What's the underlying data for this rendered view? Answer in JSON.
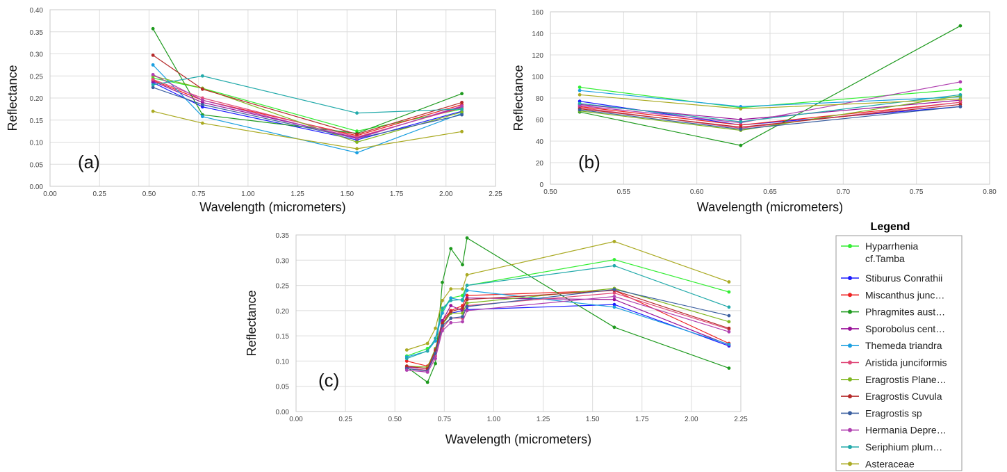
{
  "series_info": [
    {
      "name": "Hyparrhenia cf.Tamba",
      "color": "#33ee33"
    },
    {
      "name": "Stiburus Conrathii",
      "color": "#1a1aff"
    },
    {
      "name": "Miscanthus junc…",
      "color": "#ee2222"
    },
    {
      "name": "Phragmites aust…",
      "color": "#1e9a1e"
    },
    {
      "name": "Sporobolus cent…",
      "color": "#991199"
    },
    {
      "name": "Themeda triandra",
      "color": "#1a9fe0"
    },
    {
      "name": "Aristida junciformis",
      "color": "#e04a7a"
    },
    {
      "name": "Eragrostis Plane…",
      "color": "#7fb61f"
    },
    {
      "name": "Eragrostis Cuvula",
      "color": "#b52a2a"
    },
    {
      "name": "Eragrostis sp",
      "color": "#3a5fa0"
    },
    {
      "name": "Hermania Depre…",
      "color": "#b040b0"
    },
    {
      "name": "Seriphium plum…",
      "color": "#22aaaa"
    },
    {
      "name": "Asteraceae",
      "color": "#aaaa22"
    }
  ],
  "legend": {
    "title": "Legend",
    "items": [
      {
        "label": "Hyparrhenia",
        "label2": "cf.Tamba"
      },
      {
        "label": "Stiburus Conrathii"
      },
      {
        "label": "Miscanthus junc…"
      },
      {
        "label": "Phragmites aust…"
      },
      {
        "label": "Sporobolus cent…"
      },
      {
        "label": "Themeda triandra"
      },
      {
        "label": "Aristida junciformis"
      },
      {
        "label": "Eragrostis Plane…"
      },
      {
        "label": "Eragrostis Cuvula"
      },
      {
        "label": "Eragrostis sp"
      },
      {
        "label": "Hermania Depre…"
      },
      {
        "label": "Seriphium plum…"
      },
      {
        "label": "Asteraceae"
      }
    ]
  },
  "chart_data": [
    {
      "panel_label": "(a)",
      "type": "line",
      "xlabel": "Wavelength (micrometers)",
      "ylabel": "Reflectance",
      "xlim": [
        0,
        2.25
      ],
      "ylim": [
        0,
        0.4
      ],
      "xticks": [
        "0.00",
        "0.25",
        "0.50",
        "0.75",
        "1.00",
        "1.25",
        "1.50",
        "1.75",
        "2.00",
        "2.25"
      ],
      "yticks": [
        "0.00",
        "0.05",
        "0.10",
        "0.15",
        "0.20",
        "0.25",
        "0.30",
        "0.35",
        "0.40"
      ],
      "grid": true,
      "x": [
        0.52,
        0.77,
        1.55,
        2.08
      ],
      "series": [
        {
          "name": "Hyparrhenia cf.Tamba",
          "values": [
            0.245,
            0.222,
            0.125,
            0.175
          ]
        },
        {
          "name": "Stiburus Conrathii",
          "values": [
            0.235,
            0.18,
            0.105,
            0.17
          ]
        },
        {
          "name": "Miscanthus junc…",
          "values": [
            0.24,
            0.195,
            0.115,
            0.185
          ]
        },
        {
          "name": "Phragmites aust…",
          "values": [
            0.357,
            0.162,
            0.12,
            0.21
          ]
        },
        {
          "name": "Sporobolus cent…",
          "values": [
            0.238,
            0.19,
            0.11,
            0.18
          ]
        },
        {
          "name": "Themeda triandra",
          "values": [
            0.275,
            0.158,
            0.076,
            0.165
          ]
        },
        {
          "name": "Aristida junciformis",
          "values": [
            0.242,
            0.2,
            0.112,
            0.178
          ]
        },
        {
          "name": "Eragrostis Plane…",
          "values": [
            0.25,
            0.222,
            0.1,
            0.168
          ]
        },
        {
          "name": "Eragrostis Cuvula",
          "values": [
            0.297,
            0.22,
            0.118,
            0.19
          ]
        },
        {
          "name": "Eragrostis sp",
          "values": [
            0.224,
            0.185,
            0.108,
            0.162
          ]
        },
        {
          "name": "Hermania Depre…",
          "values": [
            0.253,
            0.195,
            0.108,
            0.182
          ]
        },
        {
          "name": "Seriphium plum…",
          "values": [
            0.23,
            0.25,
            0.166,
            0.175
          ]
        },
        {
          "name": "Asteraceae",
          "values": [
            0.17,
            0.143,
            0.085,
            0.124
          ]
        }
      ]
    },
    {
      "panel_label": "(b)",
      "type": "line",
      "xlabel": "Wavelength (micrometers)",
      "ylabel": "Reflectance",
      "xlim": [
        0.5,
        0.8
      ],
      "ylim": [
        0,
        160
      ],
      "xticks": [
        "0.50",
        "0.55",
        "0.60",
        "0.65",
        "0.70",
        "0.75",
        "0.80"
      ],
      "yticks": [
        "0",
        "20",
        "40",
        "60",
        "80",
        "100",
        "120",
        "140",
        "160"
      ],
      "grid": true,
      "x": [
        0.52,
        0.63,
        0.78
      ],
      "series": [
        {
          "name": "Hyparrhenia cf.Tamba",
          "values": [
            90,
            71,
            88
          ]
        },
        {
          "name": "Stiburus Conrathii",
          "values": [
            77,
            55,
            72
          ]
        },
        {
          "name": "Miscanthus junc…",
          "values": [
            72,
            55,
            76
          ]
        },
        {
          "name": "Phragmites aust…",
          "values": [
            67,
            36,
            147
          ]
        },
        {
          "name": "Sporobolus cent…",
          "values": [
            74,
            60,
            78
          ]
        },
        {
          "name": "Themeda triandra",
          "values": [
            87,
            72,
            81
          ]
        },
        {
          "name": "Aristida junciformis",
          "values": [
            71,
            52,
            76
          ]
        },
        {
          "name": "Eragrostis Plane…",
          "values": [
            68,
            50,
            82
          ]
        },
        {
          "name": "Eragrostis Cuvula",
          "values": [
            70,
            53,
            74
          ]
        },
        {
          "name": "Eragrostis sp",
          "values": [
            69,
            51,
            72
          ]
        },
        {
          "name": "Hermania Depre…",
          "values": [
            73,
            57,
            95
          ]
        },
        {
          "name": "Seriphium plum…",
          "values": [
            75,
            58,
            83
          ]
        },
        {
          "name": "Asteraceae",
          "values": [
            83,
            70,
            79
          ]
        }
      ]
    },
    {
      "panel_label": "(c)",
      "type": "line",
      "xlabel": "Wavelength (micrometers)",
      "ylabel": "Reflectance",
      "xlim": [
        0,
        2.25
      ],
      "ylim": [
        0,
        0.35
      ],
      "xticks": [
        "0.00",
        "0.25",
        "0.50",
        "0.75",
        "1.00",
        "1.25",
        "1.50",
        "1.75",
        "2.00",
        "2.25"
      ],
      "yticks": [
        "0.00",
        "0.05",
        "0.10",
        "0.15",
        "0.20",
        "0.25",
        "0.30",
        "0.35"
      ],
      "grid": true,
      "x": [
        0.56,
        0.665,
        0.705,
        0.74,
        0.783,
        0.842,
        0.865,
        1.61,
        2.19
      ],
      "series": [
        {
          "name": "Hyparrhenia cf.Tamba",
          "values": [
            0.11,
            0.125,
            0.14,
            0.2,
            0.225,
            0.23,
            0.25,
            0.301,
            0.237
          ]
        },
        {
          "name": "Stiburus Conrathii",
          "values": [
            0.085,
            0.082,
            0.115,
            0.175,
            0.195,
            0.2,
            0.202,
            0.212,
            0.13
          ]
        },
        {
          "name": "Miscanthus junc…",
          "values": [
            0.1,
            0.09,
            0.12,
            0.18,
            0.2,
            0.21,
            0.23,
            0.24,
            0.135
          ]
        },
        {
          "name": "Phragmites aust…",
          "values": [
            0.088,
            0.058,
            0.095,
            0.256,
            0.323,
            0.291,
            0.344,
            0.167,
            0.086
          ]
        },
        {
          "name": "Sporobolus cent…",
          "values": [
            0.088,
            0.085,
            0.12,
            0.18,
            0.21,
            0.2,
            0.225,
            0.222,
            0.132
          ]
        },
        {
          "name": "Themeda triandra",
          "values": [
            0.108,
            0.12,
            0.14,
            0.195,
            0.225,
            0.22,
            0.24,
            0.207,
            0.133
          ]
        },
        {
          "name": "Aristida junciformis",
          "values": [
            0.085,
            0.082,
            0.11,
            0.165,
            0.185,
            0.185,
            0.21,
            0.235,
            0.163
          ]
        },
        {
          "name": "Eragrostis Plane…",
          "values": [
            0.09,
            0.088,
            0.125,
            0.172,
            0.195,
            0.195,
            0.215,
            0.244,
            0.178
          ]
        },
        {
          "name": "Eragrostis Cuvula",
          "values": [
            0.09,
            0.085,
            0.122,
            0.175,
            0.198,
            0.205,
            0.222,
            0.24,
            0.165
          ]
        },
        {
          "name": "Eragrostis sp",
          "values": [
            0.085,
            0.08,
            0.115,
            0.17,
            0.185,
            0.188,
            0.208,
            0.242,
            0.19
          ]
        },
        {
          "name": "Hermania Depre…",
          "values": [
            0.082,
            0.078,
            0.105,
            0.16,
            0.176,
            0.178,
            0.2,
            0.228,
            0.158
          ]
        },
        {
          "name": "Seriphium plum…",
          "values": [
            0.105,
            0.12,
            0.145,
            0.205,
            0.22,
            0.222,
            0.25,
            0.289,
            0.207
          ]
        },
        {
          "name": "Asteraceae",
          "values": [
            0.122,
            0.135,
            0.165,
            0.22,
            0.243,
            0.243,
            0.271,
            0.337,
            0.257
          ]
        }
      ]
    }
  ]
}
